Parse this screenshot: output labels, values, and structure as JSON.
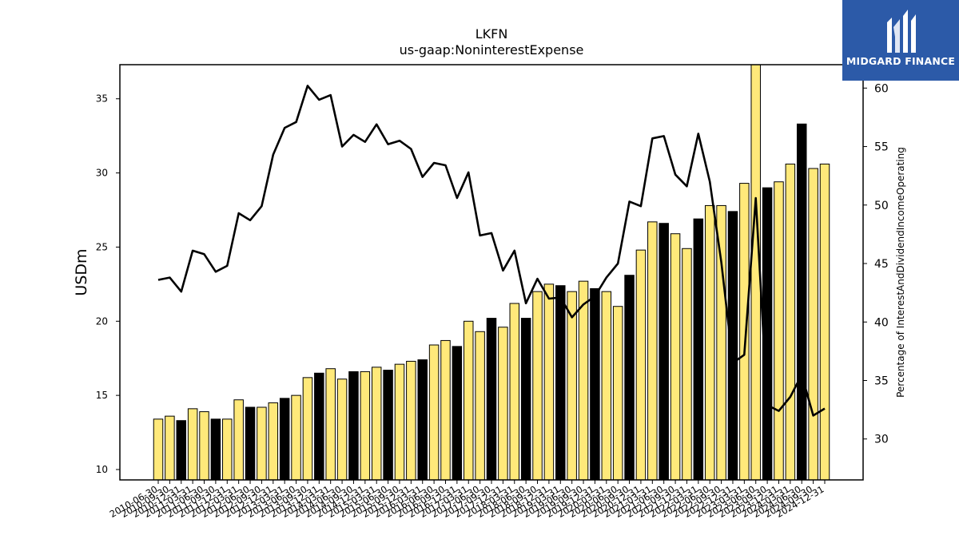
{
  "chart_data": {
    "type": "bar",
    "title": "LKFN",
    "subtitle": "us-gaap:NoninterestExpense",
    "ylabel": "USDm",
    "y2label": "Percentage of InterestAndDividendIncomeOperating",
    "ylim": [
      9.3,
      37.3
    ],
    "y2lim": [
      26.5,
      62.0
    ],
    "yticks": [
      10,
      15,
      20,
      25,
      30,
      35
    ],
    "y2ticks": [
      30,
      35,
      40,
      45,
      50,
      55,
      60
    ],
    "categories": [
      "2010-06-30",
      "2010-09-30",
      "2010-12-31",
      "2011-03-31",
      "2011-06-30",
      "2011-09-30",
      "2011-12-31",
      "2012-03-31",
      "2012-06-30",
      "2012-09-30",
      "2012-12-31",
      "2013-03-31",
      "2013-06-30",
      "2013-09-30",
      "2013-12-31",
      "2014-03-31",
      "2014-06-30",
      "2014-09-30",
      "2014-12-31",
      "2015-03-31",
      "2015-06-30",
      "2015-09-30",
      "2015-12-31",
      "2016-03-31",
      "2016-06-30",
      "2016-09-30",
      "2016-12-31",
      "2017-03-31",
      "2017-06-30",
      "2017-09-30",
      "2017-12-31",
      "2018-03-31",
      "2018-06-30",
      "2018-09-30",
      "2018-12-31",
      "2019-03-31",
      "2019-06-30",
      "2019-09-30",
      "2019-12-31",
      "2020-03-31",
      "2020-06-30",
      "2020-09-30",
      "2020-12-31",
      "2021-03-31",
      "2021-06-30",
      "2021-09-30",
      "2021-12-31",
      "2022-03-31",
      "2022-06-30",
      "2022-09-30",
      "2022-12-31",
      "2023-03-31",
      "2023-06-30",
      "2023-09-30",
      "2023-12-31",
      "2024-03-31",
      "2024-06-30",
      "2024-09-30",
      "2024-12-31"
    ],
    "xtick_labels": [
      "2010-06-30",
      "2010-09-30",
      "2010-12-31",
      "2011-03-31",
      "2011-06-30",
      "2011-09-30",
      "2011-12-31",
      "2012-03-31",
      "2012-06-30",
      "2012-09-30",
      "2012-12-31",
      "2013-03-31",
      "2013-06-30",
      "2013-09-30",
      "2013-12-31",
      "2014-03-31",
      "2014-06-30",
      "2014-09-30",
      "2014-12-31",
      "2015-03-31",
      "2015-06-30",
      "2015-09-30",
      "2015-12-31",
      "2016-03-31",
      "2016-06-30",
      "2016-09-30",
      "2016-12-31",
      "2017-03-31",
      "2017-06-30",
      "2017-09-30",
      "2017-12-31",
      "2018-03-31",
      "2018-06-30",
      "2018-09-30",
      "2018-12-31",
      "2019-03-31",
      "2019-06-30",
      "2019-09-30",
      "2019-12-31",
      "2020-03-31",
      "2020-06-30",
      "2020-09-30",
      "2020-12-31",
      "2021-03-31",
      "2021-06-30",
      "2021-09-30",
      "2021-12-31",
      "2022-03-31",
      "2022-06-30",
      "2022-09-30",
      "2022-12-31",
      "2023-03-31",
      "2023-06-30",
      "2023-09-30",
      "2023-12-31",
      "2024-03-31",
      "2024-06-30",
      "2024-09-30",
      "2024-12-31"
    ],
    "series": [
      {
        "kind": "bar",
        "axis": "left",
        "values": [
          13.4,
          13.6,
          13.3,
          14.1,
          13.9,
          13.4,
          13.4,
          14.7,
          14.2,
          14.2,
          14.5,
          14.8,
          15.0,
          16.2,
          16.5,
          16.8,
          16.1,
          16.6,
          16.6,
          16.9,
          16.7,
          17.1,
          17.3,
          17.4,
          18.4,
          18.7,
          18.3,
          20.0,
          19.3,
          20.2,
          19.6,
          21.2,
          20.2,
          22.0,
          22.5,
          22.4,
          22.0,
          22.7,
          22.2,
          22.0,
          21.0,
          23.1,
          24.8,
          26.7,
          26.6,
          25.9,
          24.9,
          26.9,
          27.8,
          27.8,
          27.4,
          29.3,
          37.3,
          29.0,
          29.4,
          30.6,
          33.3,
          30.3,
          30.6
        ],
        "color_pattern": [
          "#ffe97a",
          "#ffe97a",
          "#000000"
        ]
      },
      {
        "kind": "line",
        "axis": "right",
        "color": "#000000",
        "values": [
          43.6,
          43.8,
          42.6,
          46.1,
          45.8,
          44.3,
          44.8,
          49.3,
          48.7,
          49.9,
          54.3,
          56.6,
          57.1,
          60.2,
          59.0,
          59.4,
          55.0,
          56.0,
          55.4,
          56.9,
          55.2,
          55.5,
          54.8,
          52.4,
          53.6,
          53.4,
          50.6,
          52.8,
          47.4,
          47.6,
          44.4,
          46.1,
          41.6,
          43.7,
          42.0,
          42.1,
          40.4,
          41.5,
          42.2,
          43.8,
          45.0,
          50.3,
          49.9,
          55.7,
          55.9,
          52.6,
          51.6,
          56.1,
          52.0,
          45.1,
          36.5,
          37.2,
          50.6,
          32.9,
          32.4,
          33.6,
          35.5,
          32.0,
          32.6
        ]
      }
    ],
    "grid": false,
    "legend": "none"
  },
  "logo": {
    "text": "MIDGARD FINANCE",
    "color": "#2c5aa8"
  }
}
